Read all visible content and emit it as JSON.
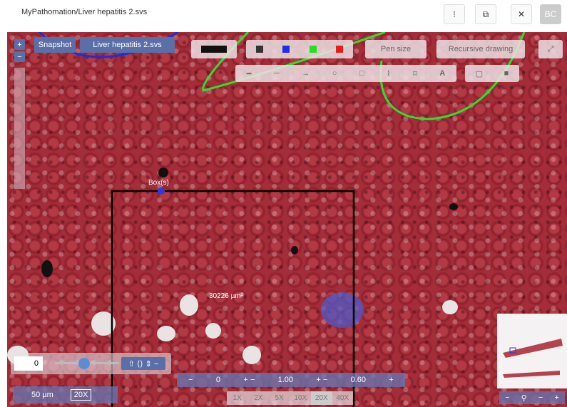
{
  "header": {
    "title": "MyPathomation/Liver hepatitis 2.svs",
    "avatar": "BC"
  },
  "toolbar": {
    "snapshot": "Snapshot",
    "file": "Liver hepatitis 2.svs",
    "pen_size": "Pen size",
    "recursive": "Recursive drawing",
    "text_tool": "A"
  },
  "annotations": {
    "box_label": "Box(s)",
    "area_label": "30226 µm²"
  },
  "controls": {
    "rotation": "0",
    "brightness": "0",
    "contrast": "1.00",
    "gamma": "0.60",
    "scale": "50 µm",
    "magnification": "20X",
    "zoom_levels": [
      "1X",
      "2X",
      "5X",
      "10X",
      "20X",
      "40X"
    ]
  }
}
